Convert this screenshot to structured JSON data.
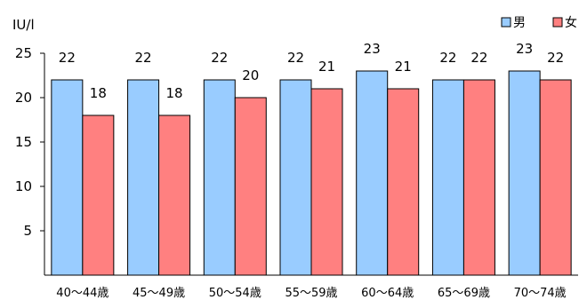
{
  "chart_data": {
    "type": "bar",
    "ylabel": "IU/l",
    "ylim": [
      0,
      25
    ],
    "yticks": [
      5,
      10,
      15,
      20,
      25
    ],
    "grid": false,
    "legend_position": "top-right",
    "categories": [
      "40～44歳",
      "45～49歳",
      "50～54歳",
      "55～59歳",
      "60～64歳",
      "65～69歳",
      "70～74歳"
    ],
    "series": [
      {
        "name": "男",
        "color": "#99ccff",
        "values": [
          22,
          22,
          22,
          22,
          23,
          22,
          23
        ]
      },
      {
        "name": "女",
        "color": "#ff8080",
        "values": [
          18,
          18,
          20,
          21,
          21,
          22,
          22
        ]
      }
    ]
  }
}
